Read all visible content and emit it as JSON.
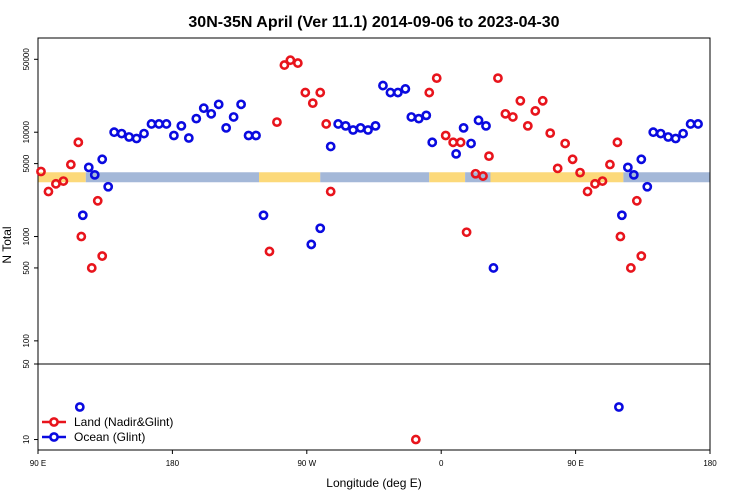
{
  "chart_data": {
    "type": "scatter",
    "title": "30N-35N April (Ver 11.1)   2014-09-06 to 2023-04-30",
    "xlabel": "Longitude (deg E)",
    "ylabel": "N Total",
    "x_ticks": [
      {
        "value": 90,
        "label": "90 E"
      },
      {
        "value": 180,
        "label": "180"
      },
      {
        "value": 270,
        "label": "90 W"
      },
      {
        "value": 360,
        "label": "0"
      },
      {
        "value": 450,
        "label": "90 E"
      },
      {
        "value": 540,
        "label": "180"
      }
    ],
    "y_ticks_upper": [
      {
        "value": 50000,
        "label": "50000"
      },
      {
        "value": 10000,
        "label": "10000"
      },
      {
        "value": 5000,
        "label": "5000"
      },
      {
        "value": 1000,
        "label": "1000"
      },
      {
        "value": 500,
        "label": "500"
      },
      {
        "value": 100,
        "label": "100"
      }
    ],
    "y_ticks_lower": [
      {
        "value": 50,
        "label": "50"
      },
      {
        "value": 10,
        "label": "10"
      }
    ],
    "xlim": [
      90,
      540
    ],
    "ylim_upper": [
      60,
      80000
    ],
    "ylim_lower": [
      8,
      50
    ],
    "y_scale": "log",
    "legend_position": "bottom-left",
    "land_mask_colors": {
      "land": "#fcd97a",
      "ocean": "#a4b8d8"
    },
    "land_mask_segments": [
      {
        "type": "land",
        "x0": 90,
        "x1": 122
      },
      {
        "type": "ocean",
        "x0": 122,
        "x1": 238
      },
      {
        "type": "land",
        "x0": 238,
        "x1": 279
      },
      {
        "type": "ocean",
        "x0": 279,
        "x1": 352
      },
      {
        "type": "land",
        "x0": 352,
        "x1": 376
      },
      {
        "type": "ocean",
        "x0": 376,
        "x1": 393
      },
      {
        "type": "land",
        "x0": 393,
        "x1": 482
      },
      {
        "type": "ocean",
        "x0": 482,
        "x1": 540
      }
    ],
    "series": [
      {
        "name": "Land (Nadir&Glint)",
        "color": "#e8141c",
        "points": [
          [
            92,
            4200
          ],
          [
            97,
            2700
          ],
          [
            102,
            3200
          ],
          [
            107,
            3400
          ],
          [
            112,
            4900
          ],
          [
            117,
            8000
          ],
          [
            119,
            1000
          ],
          [
            126,
            500
          ],
          [
            130,
            2200
          ],
          [
            133,
            650
          ],
          [
            245,
            720
          ],
          [
            250,
            12500
          ],
          [
            255,
            44000
          ],
          [
            259,
            49000
          ],
          [
            264,
            46000
          ],
          [
            269,
            24000
          ],
          [
            274,
            19000
          ],
          [
            279,
            24000
          ],
          [
            283,
            12000
          ],
          [
            286,
            2700
          ],
          [
            352,
            24000
          ],
          [
            357,
            33000
          ],
          [
            363,
            9300
          ],
          [
            368,
            8000
          ],
          [
            373,
            8000
          ],
          [
            377,
            1100
          ],
          [
            383,
            4000
          ],
          [
            388,
            3800
          ],
          [
            392,
            5900
          ],
          [
            398,
            33000
          ],
          [
            403,
            15000
          ],
          [
            408,
            14000
          ],
          [
            413,
            20000
          ],
          [
            418,
            11500
          ],
          [
            423,
            16000
          ],
          [
            428,
            20000
          ],
          [
            433,
            9800
          ],
          [
            438,
            4500
          ],
          [
            443,
            7800
          ],
          [
            448,
            5500
          ],
          [
            453,
            4100
          ],
          [
            458,
            2700
          ],
          [
            463,
            3200
          ],
          [
            468,
            3400
          ],
          [
            473,
            4900
          ],
          [
            478,
            8000
          ],
          [
            480,
            1000
          ],
          [
            487,
            500
          ],
          [
            491,
            2200
          ],
          [
            494,
            650
          ],
          [
            343,
            10
          ]
        ]
      },
      {
        "name": "Ocean (Glint)",
        "color": "#0a0ae0",
        "points": [
          [
            120,
            1600
          ],
          [
            124,
            4600
          ],
          [
            128,
            3900
          ],
          [
            133,
            5500
          ],
          [
            137,
            3000
          ],
          [
            141,
            10000
          ],
          [
            146,
            9700
          ],
          [
            151,
            9000
          ],
          [
            156,
            8700
          ],
          [
            161,
            9700
          ],
          [
            166,
            12000
          ],
          [
            171,
            12000
          ],
          [
            176,
            12000
          ],
          [
            181,
            9300
          ],
          [
            186,
            11500
          ],
          [
            191,
            8800
          ],
          [
            196,
            13500
          ],
          [
            201,
            17000
          ],
          [
            206,
            15000
          ],
          [
            211,
            18500
          ],
          [
            216,
            11000
          ],
          [
            221,
            14000
          ],
          [
            226,
            18500
          ],
          [
            231,
            9300
          ],
          [
            236,
            9300
          ],
          [
            241,
            1600
          ],
          [
            273,
            840
          ],
          [
            279,
            1200
          ],
          [
            286,
            7300
          ],
          [
            291,
            12000
          ],
          [
            296,
            11500
          ],
          [
            301,
            10500
          ],
          [
            306,
            11000
          ],
          [
            311,
            10500
          ],
          [
            316,
            11500
          ],
          [
            321,
            28000
          ],
          [
            326,
            24000
          ],
          [
            331,
            24000
          ],
          [
            336,
            26000
          ],
          [
            340,
            14000
          ],
          [
            345,
            13500
          ],
          [
            350,
            14500
          ],
          [
            354,
            8000
          ],
          [
            370,
            6200
          ],
          [
            375,
            11000
          ],
          [
            380,
            7800
          ],
          [
            385,
            13000
          ],
          [
            390,
            11500
          ],
          [
            395,
            500
          ],
          [
            481,
            1600
          ],
          [
            485,
            4600
          ],
          [
            489,
            3900
          ],
          [
            494,
            5500
          ],
          [
            498,
            3000
          ],
          [
            502,
            10000
          ],
          [
            507,
            9700
          ],
          [
            512,
            9000
          ],
          [
            517,
            8700
          ],
          [
            522,
            9700
          ],
          [
            527,
            12000
          ],
          [
            532,
            12000
          ],
          [
            118,
            20
          ],
          [
            479,
            20
          ]
        ]
      }
    ]
  }
}
